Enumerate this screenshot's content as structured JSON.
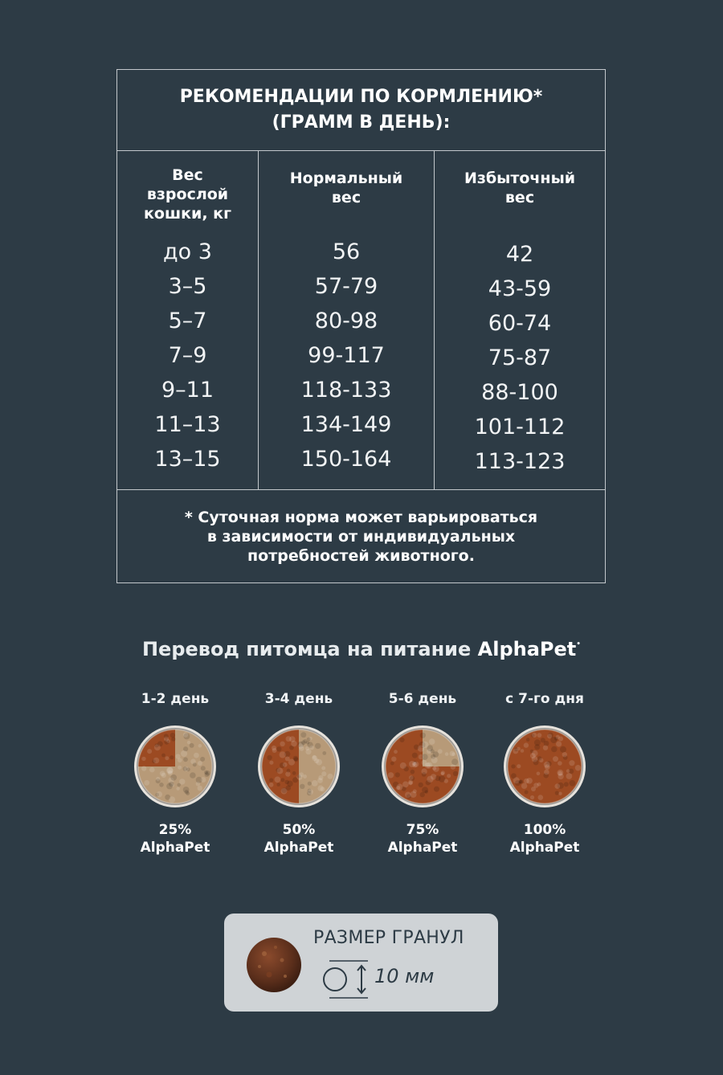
{
  "feeding_table": {
    "title_lines": [
      "РЕКОМЕНДАЦИИ ПО КОРМЛЕНИЮ*",
      "(ГРАММ В ДЕНЬ):"
    ],
    "columns": [
      {
        "header_lines": [
          "Вес",
          "взрослой",
          "кошки, кг"
        ],
        "cells": [
          "до 3",
          "3–5",
          "5–7",
          "7–9",
          "9–11",
          "11–13",
          "13–15"
        ]
      },
      {
        "header_lines": [
          "Нормальный",
          "вес"
        ],
        "cells": [
          "56",
          "57-79",
          "80-98",
          "99-117",
          "118-133",
          "134-149",
          "150-164"
        ]
      },
      {
        "header_lines": [
          "Избыточный",
          "вес"
        ],
        "cells": [
          "42",
          "43-59",
          "60-74",
          "75-87",
          "88-100",
          "101-112",
          "113-123"
        ]
      }
    ],
    "footnote_lines": [
      "* Суточная норма может варьироваться",
      "в зависимости от индивидуальных",
      "потребностей животного."
    ]
  },
  "transition": {
    "title": "Перевод питомца на питание",
    "brand": "AlphaPet",
    "brand_mark": "•",
    "steps": [
      {
        "day": "1-2 день",
        "percent": "25%",
        "brand": "AlphaPet",
        "fraction": 0.25
      },
      {
        "day": "3-4 день",
        "percent": "50%",
        "brand": "AlphaPet",
        "fraction": 0.5
      },
      {
        "day": "5-6 день",
        "percent": "75%",
        "brand": "AlphaPet",
        "fraction": 0.75
      },
      {
        "day": "с 7-го дня",
        "percent": "100%",
        "brand": "AlphaPet",
        "fraction": 1.0
      }
    ]
  },
  "granule": {
    "title": "РАЗМЕР ГРАНУЛ",
    "size": "10 мм"
  },
  "colors": {
    "background": "#2d3b45",
    "lines": "#c3c8cc",
    "card": "#cfd3d6",
    "new_food": "#9c4a22",
    "old_food": "#b79a78"
  }
}
